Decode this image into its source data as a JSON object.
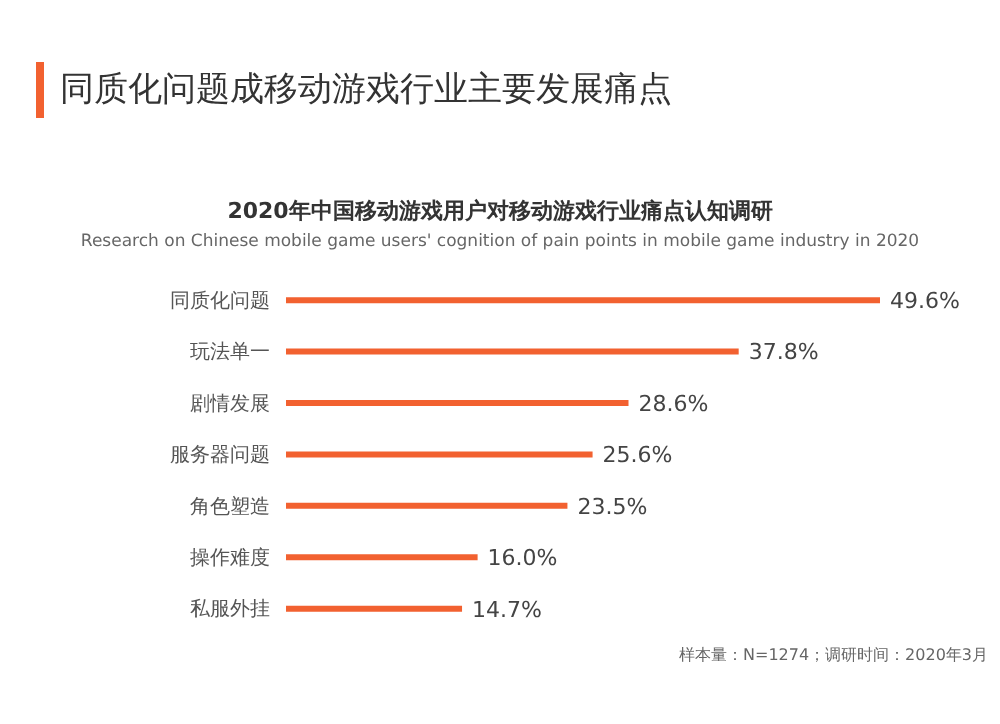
{
  "chart_data": {
    "type": "bar",
    "orientation": "horizontal",
    "title": "同质化问题成移动游戏行业主要发展痛点",
    "subtitle": "2020年中国移动游戏用户对移动游戏行业痛点认知调研",
    "categories": [
      "同质化问题",
      "玩法单一",
      "剧情发展",
      "服务器问题",
      "角色塑造",
      "操作难度",
      "私服外挂"
    ],
    "values": [
      49.6,
      37.8,
      28.6,
      25.6,
      23.5,
      16.0,
      14.7
    ],
    "value_labels": [
      "49.6%",
      "37.8%",
      "28.6%",
      "25.6%",
      "23.5%",
      "16.0%",
      "14.7%"
    ],
    "color": "#f26130",
    "grid": false,
    "legend": false,
    "annotations": [
      "Research on Chinese mobile game users' cognition of pain points in mobile game industry in 2020",
      "样本量：N=1274；调研时间：2020年3月"
    ]
  }
}
